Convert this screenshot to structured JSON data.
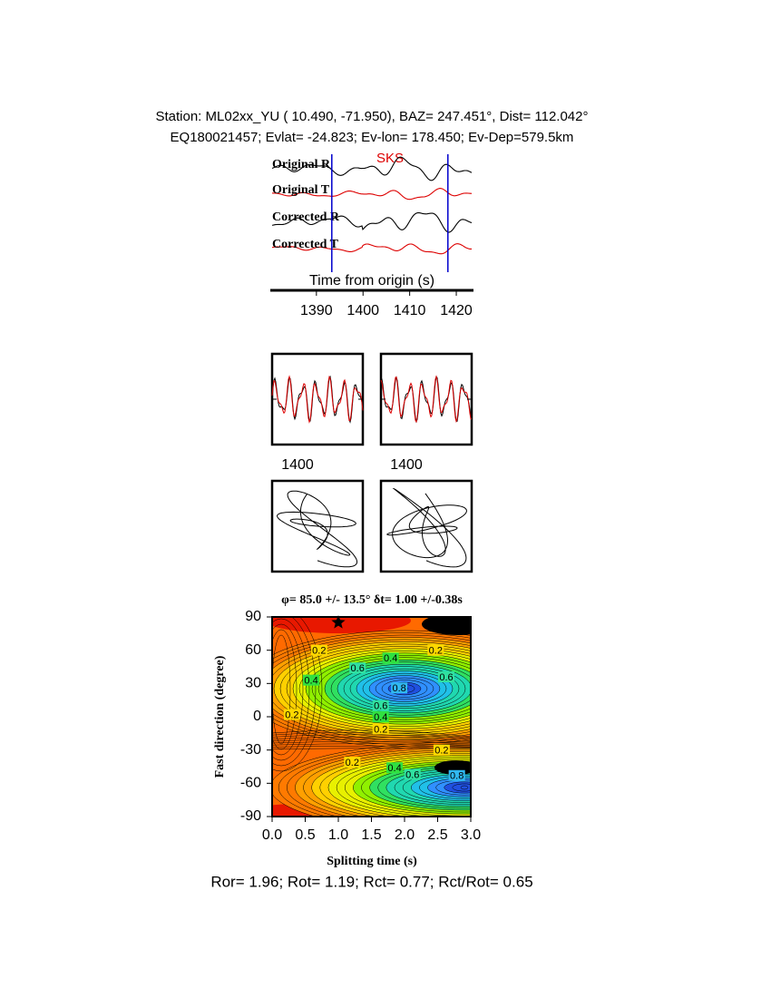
{
  "header": {
    "station": "Station: ML02xx_YU (  10.490,  -71.950), BAZ=  247.451°, Dist=  112.042°",
    "event": "EQ180021457; Evlat= -24.823; Ev-lon= 178.450; Ev-Dep=579.5km"
  },
  "waveforms": {
    "traces": [
      {
        "name": "Original R",
        "color": "#000000"
      },
      {
        "name": "Original T",
        "color": "#dd0000"
      },
      {
        "name": "Corrected R",
        "color": "#000000"
      },
      {
        "name": "Corrected T",
        "color": "#dd0000"
      }
    ],
    "phase": "SKS",
    "xlabel": "Time from origin (s)",
    "xlim": [
      1380.5,
      1423.3
    ],
    "xticks": [
      1390,
      1400,
      1410,
      1420
    ],
    "window": [
      1393.3,
      1418.2
    ],
    "window_color": "#0000cc"
  },
  "comparison_panels": [
    {
      "xtick": 1400
    },
    {
      "xtick": 1400
    }
  ],
  "grid_search": {
    "title": "φ= 85.0 +/- 13.5° δt= 1.00 +/-0.38s",
    "xlabel": "Splitting time (s)",
    "ylabel": "Fast direction (degree)",
    "xlim": [
      0,
      3
    ],
    "ylim": [
      -90,
      90
    ],
    "xticks": [
      {
        "value": 0,
        "label": "0.0"
      },
      0.5,
      {
        "value": 1,
        "label": "1.0"
      },
      1.5,
      {
        "value": 2,
        "label": "2.0"
      },
      2.5,
      {
        "value": 3,
        "label": "3.0"
      }
    ],
    "yticks": [
      -90,
      -60,
      -30,
      0,
      30,
      60,
      90
    ],
    "best": {
      "x": 1.0,
      "y": 85
    },
    "contour_labels": [
      {
        "x": 0.71,
        "y": 60,
        "level": 0.2
      },
      {
        "x": 1.79,
        "y": 53,
        "level": 0.4
      },
      {
        "x": 2.47,
        "y": 60,
        "level": 0.2
      },
      {
        "x": 1.29,
        "y": 44,
        "level": 0.6
      },
      {
        "x": 0.59,
        "y": 33,
        "level": 0.4
      },
      {
        "x": 2.63,
        "y": 36,
        "level": 0.6
      },
      {
        "x": 1.92,
        "y": 26,
        "level": 0.8
      },
      {
        "x": 1.64,
        "y": 10,
        "level": 0.6
      },
      {
        "x": 1.64,
        "y": 0,
        "level": 0.4
      },
      {
        "x": 1.64,
        "y": -11,
        "level": 0.2
      },
      {
        "x": 0.3,
        "y": 2,
        "level": 0.2
      },
      {
        "x": 2.56,
        "y": -30,
        "level": 0.2
      },
      {
        "x": 1.21,
        "y": -41,
        "level": 0.2
      },
      {
        "x": 1.85,
        "y": -46,
        "level": 0.4
      },
      {
        "x": 2.12,
        "y": -52,
        "level": 0.6
      },
      {
        "x": 2.79,
        "y": -53,
        "level": 0.8
      }
    ]
  },
  "footer": "Ror= 1.96; Rot= 1.19; Rct= 0.77; Rct/Rot= 0.65"
}
